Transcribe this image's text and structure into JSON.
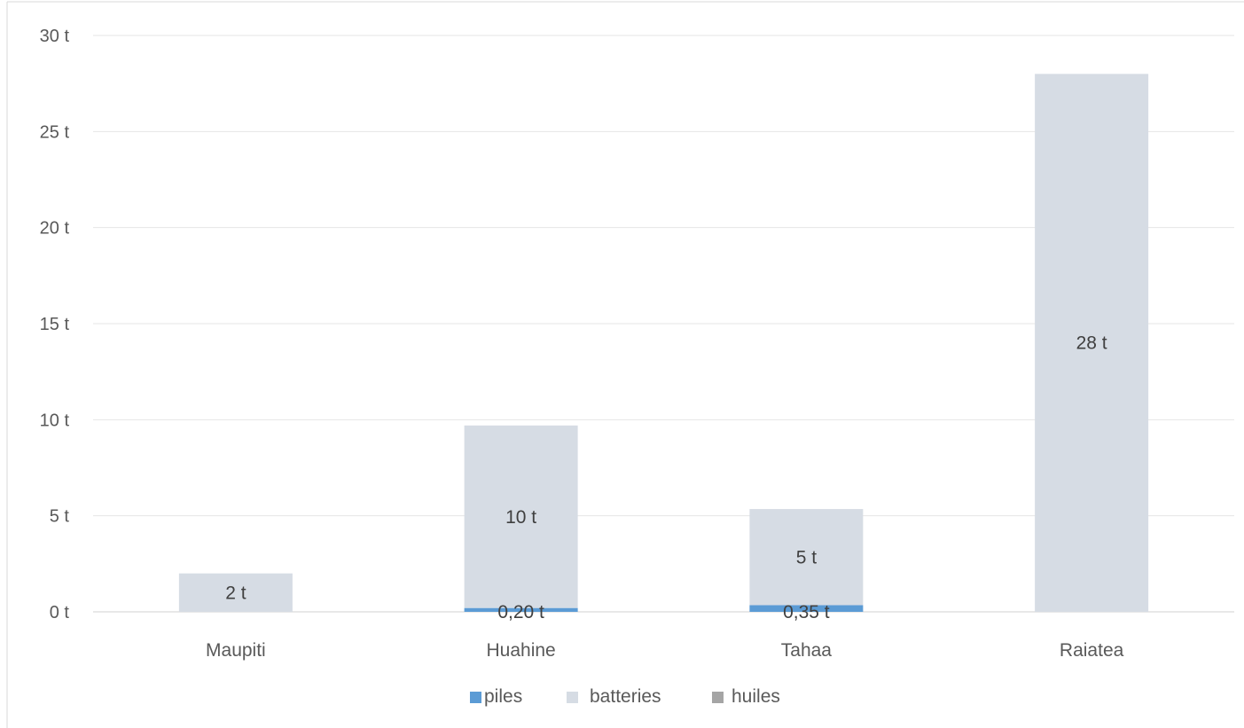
{
  "chart_data": {
    "type": "bar",
    "stacked": true,
    "categories": [
      "Maupiti",
      "Huahine",
      "Tahaa",
      "Raiatea"
    ],
    "series": [
      {
        "name": "piles",
        "color": "#5B9BD5",
        "values": [
          0,
          0.2,
          0.35,
          0
        ],
        "labels": [
          "",
          "0,20 t",
          "0,35 t",
          ""
        ]
      },
      {
        "name": "batteries",
        "color": "#D6DCE4",
        "values": [
          2,
          9.5,
          5,
          28
        ],
        "labels": [
          "2 t",
          "10 t",
          "5 t",
          "28 t"
        ]
      },
      {
        "name": "huiles",
        "color": "#A5A5A5",
        "values": [
          0,
          0,
          0,
          0
        ],
        "labels": [
          "",
          "",
          "",
          ""
        ]
      }
    ],
    "ylim": [
      0,
      30
    ],
    "yticks": [
      {
        "value": 0,
        "label": "0 t"
      },
      {
        "value": 5,
        "label": "5 t"
      },
      {
        "value": 10,
        "label": "10 t"
      },
      {
        "value": 15,
        "label": "15 t"
      },
      {
        "value": 20,
        "label": "20 t"
      },
      {
        "value": 25,
        "label": "25 t"
      },
      {
        "value": 30,
        "label": "30 t"
      }
    ],
    "grid": true,
    "legend_position": "bottom",
    "title": "",
    "xlabel": "",
    "ylabel": ""
  }
}
